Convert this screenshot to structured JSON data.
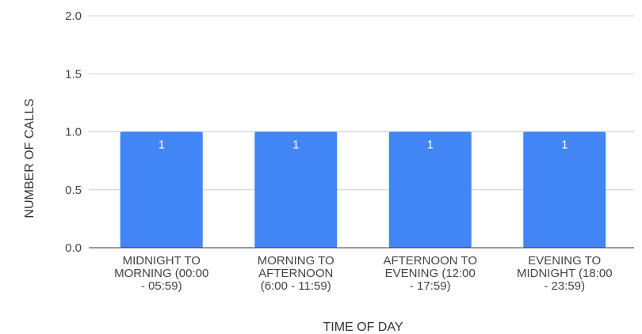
{
  "chart_data": {
    "type": "bar",
    "title": "",
    "xlabel": "TIME OF DAY",
    "ylabel": "NUMBER OF CALLS",
    "ylim": [
      0,
      2
    ],
    "yticks": [
      "0.0",
      "0.5",
      "1.0",
      "1.5",
      "2.0"
    ],
    "grid": true,
    "categories": [
      [
        "MIDNIGHT TO",
        "MORNING (00:00",
        "- 05:59)"
      ],
      [
        "MORNING TO",
        "AFTERNOON",
        "(6:00 - 11:59)"
      ],
      [
        "AFTERNOON TO",
        "EVENING (12:00",
        "- 17:59)"
      ],
      [
        "EVENING TO",
        "MIDNIGHT (18:00",
        "- 23:59)"
      ]
    ],
    "values": [
      1,
      1,
      1,
      1
    ],
    "data_labels": [
      "1",
      "1",
      "1",
      "1"
    ],
    "bar_color": "#4285f4",
    "grid_color": "#cccccc",
    "axis_color": "#333333"
  }
}
